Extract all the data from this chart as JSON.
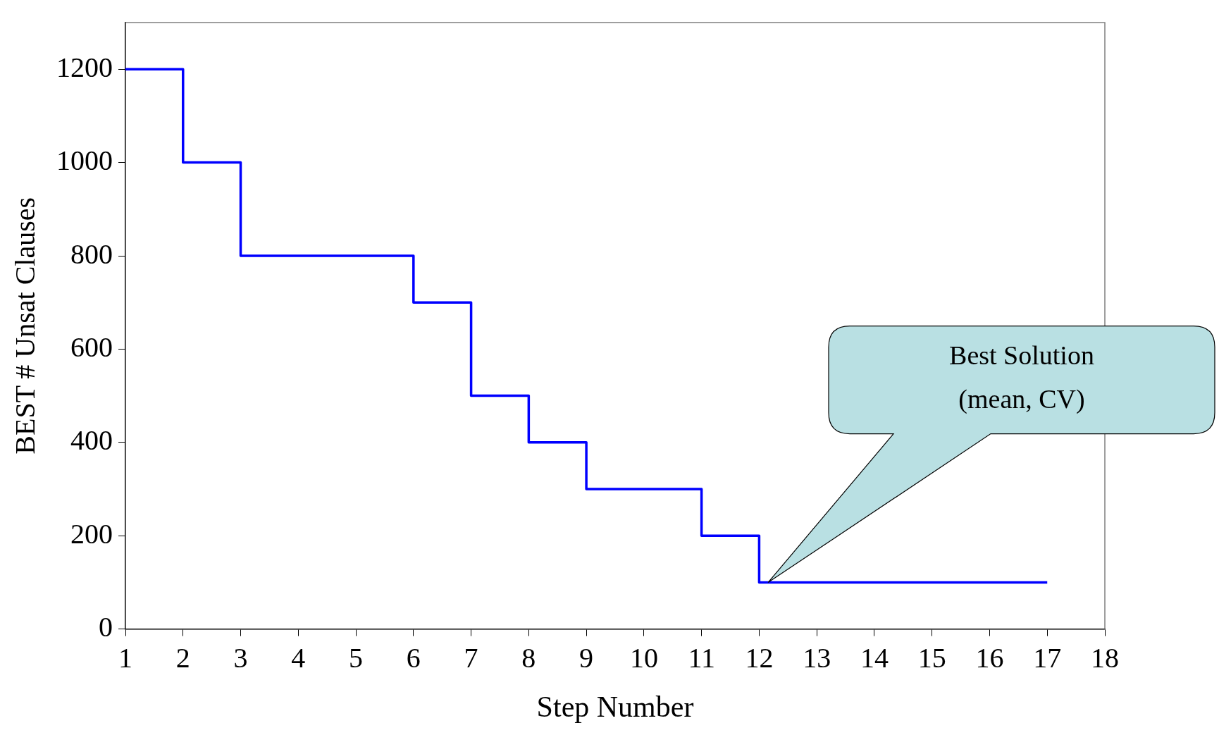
{
  "chart_data": {
    "type": "step",
    "xlabel": "Step Number",
    "ylabel": "BEST # Unsat Clauses",
    "x": [
      1,
      2,
      3,
      4,
      5,
      6,
      7,
      8,
      9,
      10,
      11,
      12,
      13,
      14,
      15,
      16,
      17
    ],
    "series": [
      {
        "color": "#0000ff",
        "values": [
          1200,
          1000,
          800,
          800,
          800,
          700,
          500,
          400,
          300,
          300,
          200,
          100,
          100,
          100,
          100,
          100,
          100
        ]
      }
    ],
    "xlim": [
      1,
      18
    ],
    "xticks": [
      1,
      2,
      3,
      4,
      5,
      6,
      7,
      8,
      9,
      10,
      11,
      12,
      13,
      14,
      15,
      16,
      17,
      18
    ],
    "ylim": [
      0,
      1300
    ],
    "yticks": [
      0,
      200,
      400,
      600,
      800,
      1000,
      1200
    ],
    "grid": false,
    "legend": false,
    "marker": "none",
    "line_style": "solid",
    "annotations": [
      "Best Solution\n(mean, CV)"
    ]
  }
}
